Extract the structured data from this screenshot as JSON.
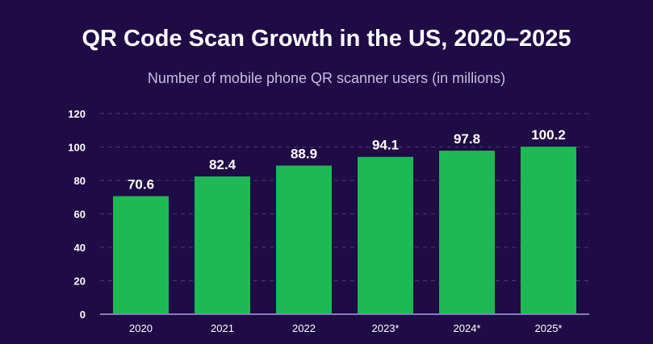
{
  "chart_data": {
    "type": "bar",
    "title": "QR Code Scan Growth in the US, 2020–2025",
    "subtitle": "Number of mobile phone QR scanner users (in millions)",
    "categories": [
      "2020",
      "2021",
      "2022",
      "2023*",
      "2024*",
      "2025*"
    ],
    "values": [
      70.6,
      82.4,
      88.9,
      94.1,
      97.8,
      100.2
    ],
    "value_labels": [
      "70.6",
      "82.4",
      "88.9",
      "94.1",
      "97.8",
      "100.2"
    ],
    "ylim": [
      0,
      120
    ],
    "yticks": [
      0,
      20,
      40,
      60,
      80,
      100,
      120
    ],
    "grid": true,
    "legend": "none"
  },
  "colors": {
    "background": "#1f0b45",
    "bar": "#1db954",
    "grid": "#4a3a72",
    "axis": "#8a7cc0"
  }
}
